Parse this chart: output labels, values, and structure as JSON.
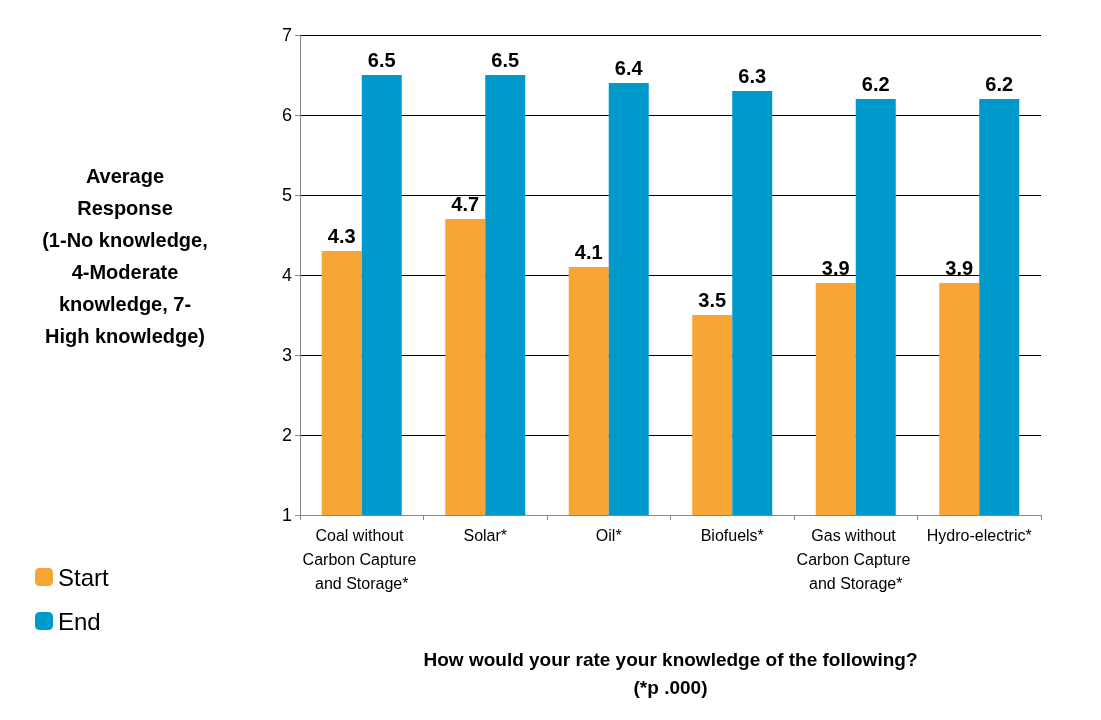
{
  "chart_data": {
    "type": "bar",
    "ylabel": "Average Response\n(1-No knowledge, 4-Moderate knowledge, 7-High knowledge)",
    "xlabel": "How would your rate your knowledge of the following?\n(*p .000)",
    "categories": [
      "Coal without Carbon Capture and Storage*",
      "Solar*",
      "Oil*",
      "Biofuels*",
      "Gas without Carbon Capture and Storage*",
      "Hydro-electric*"
    ],
    "series": [
      {
        "name": "Start",
        "color": "#f7a535",
        "values": [
          4.3,
          4.7,
          4.1,
          3.5,
          3.9,
          3.9
        ]
      },
      {
        "name": "End",
        "color": "#0099cc",
        "values": [
          6.5,
          6.5,
          6.4,
          6.3,
          6.2,
          6.2
        ]
      }
    ],
    "ylim": [
      1,
      7
    ],
    "yticks": [
      1,
      2,
      3,
      4,
      5,
      6,
      7
    ],
    "grid": "y",
    "legend": "bottom left",
    "data_labels": true
  }
}
